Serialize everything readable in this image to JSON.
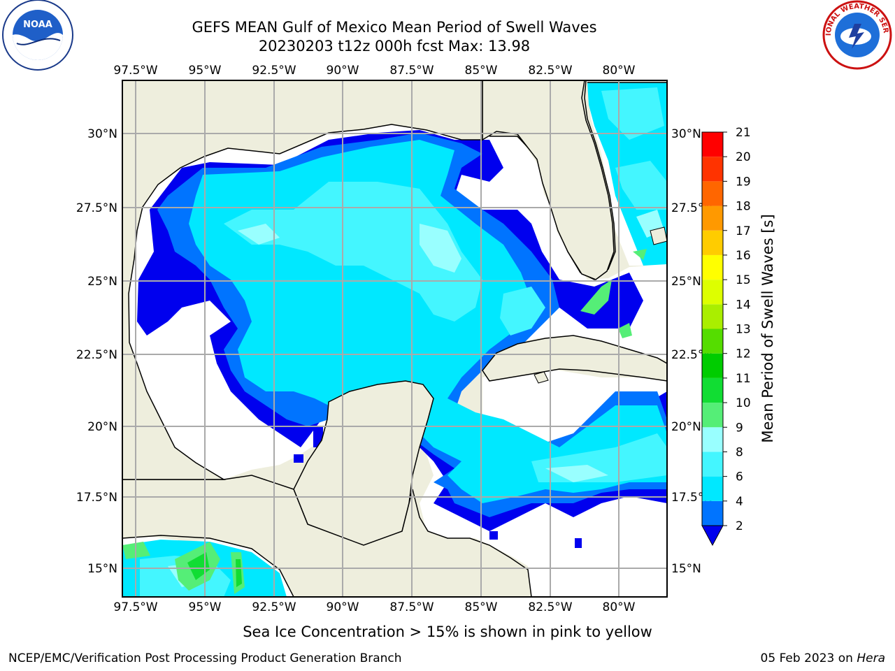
{
  "title": {
    "line1": "GEFS MEAN Gulf of Mexico Mean Period of Swell Waves",
    "line2": "20230203 t12z 000h fcst   Max: 13.98"
  },
  "map": {
    "lon_labels": [
      "97.5°W",
      "95°W",
      "92.5°W",
      "90°W",
      "87.5°W",
      "85°W",
      "82.5°W",
      "80°W"
    ],
    "lat_labels": [
      "30°N",
      "27.5°N",
      "25°N",
      "22.5°N",
      "20°N",
      "17.5°N",
      "15°N"
    ],
    "lon_range": [
      -98,
      -78.3
    ],
    "lat_range": [
      14,
      31.6
    ],
    "land_color": "#eeeedd",
    "no_data_color": "#ffffff",
    "grid": true
  },
  "colorbar": {
    "label": "Mean Period of Swell Waves [s]",
    "ticks": [
      "2",
      "4",
      "6",
      "8",
      "9",
      "10",
      "11",
      "12",
      "13",
      "14",
      "15",
      "16",
      "17",
      "18",
      "19",
      "20",
      "21"
    ],
    "colors": [
      "#0000ee",
      "#0074ff",
      "#00e8ff",
      "#44f6ff",
      "#99ffff",
      "#55ee77",
      "#11dd33",
      "#00cc00",
      "#55dd00",
      "#aaee00",
      "#ddff00",
      "#ffff00",
      "#ffcc00",
      "#ff9900",
      "#ff6600",
      "#ff3300",
      "#ff0000"
    ],
    "extend_min_color": "#0000ee"
  },
  "caption": "Sea Ice Concentration > 15% is shown in pink to yellow",
  "footer": {
    "left": "NCEP/EMC/Verification Post Processing Product Generation Branch",
    "date": "05 Feb 2023 on ",
    "host": "Hera"
  },
  "logos": {
    "noaa_text": "NOAA",
    "nws_text": "NATIONAL WEATHER SERVICE"
  }
}
